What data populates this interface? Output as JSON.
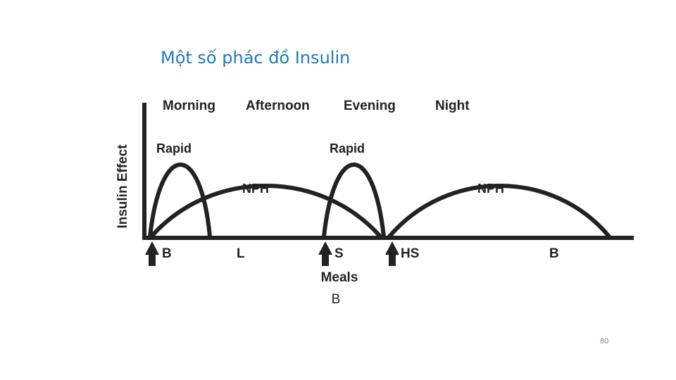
{
  "slide": {
    "title": "Một số phác đồ Insulin",
    "page_number": "80"
  },
  "diagram": {
    "y_axis_label": "Insulin Effect",
    "periods": [
      "Morning",
      "Afternoon",
      "Evening",
      "Night"
    ],
    "curves": {
      "rapid_1": "Rapid",
      "nph_1": "NPH",
      "rapid_2": "Rapid",
      "nph_2": "NPH"
    },
    "timeline": {
      "b_start": "B",
      "l": "L",
      "s": "S",
      "hs": "HS",
      "b_end": "B"
    },
    "meals_label": "Meals",
    "caption": "B"
  }
}
